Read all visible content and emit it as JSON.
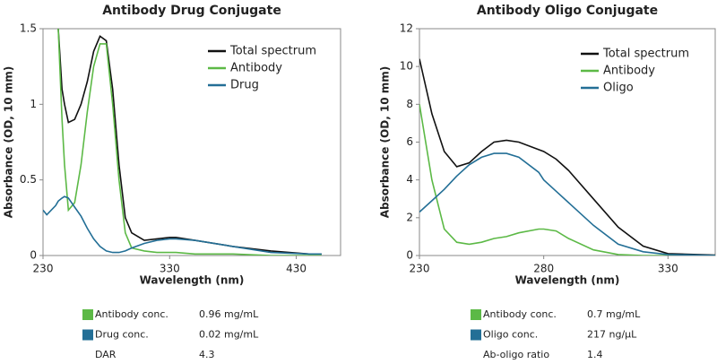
{
  "chart_data": [
    {
      "type": "line",
      "title": "Antibody Drug Conjugate",
      "x_label": "Wavelength (nm)",
      "y_label": "Absorbance (OD, 10 mm)",
      "x": [
        230,
        233,
        240,
        242,
        245,
        247,
        250,
        255,
        260,
        265,
        270,
        275,
        280,
        285,
        290,
        295,
        300,
        310,
        320,
        330,
        335,
        350,
        380,
        410,
        440,
        450
      ],
      "series": [
        {
          "name": "Total spectrum",
          "color": "#111111",
          "values": [
            null,
            null,
            null,
            1.5,
            1.1,
            1.0,
            0.88,
            0.9,
            1.0,
            1.15,
            1.35,
            1.45,
            1.42,
            1.1,
            0.6,
            0.25,
            0.15,
            0.1,
            0.11,
            0.12,
            0.12,
            0.1,
            0.06,
            0.03,
            0.01,
            0.01
          ]
        },
        {
          "name": "Antibody",
          "color": "#5cb946",
          "values": [
            null,
            null,
            null,
            1.5,
            0.9,
            0.6,
            0.3,
            0.35,
            0.6,
            0.95,
            1.25,
            1.4,
            1.4,
            1.0,
            0.5,
            0.15,
            0.05,
            0.03,
            0.02,
            0.02,
            0.02,
            0.01,
            0.01,
            0,
            0,
            0
          ]
        },
        {
          "name": "Drug",
          "color": "#236f96",
          "values": [
            0.3,
            0.27,
            0.33,
            0.36,
            0.38,
            0.39,
            0.38,
            0.32,
            0.26,
            0.18,
            0.11,
            0.06,
            0.03,
            0.02,
            0.02,
            0.03,
            0.05,
            0.08,
            0.1,
            0.11,
            0.11,
            0.1,
            0.06,
            0.02,
            0.01,
            0.01
          ]
        }
      ],
      "xlim": [
        230,
        465
      ],
      "ylim": [
        0,
        1.5
      ],
      "xticks": [
        230,
        330,
        430
      ],
      "yticks": [
        0,
        0.5,
        1,
        1.5
      ],
      "stats": [
        {
          "label": "Antibody conc.",
          "value": "0.96 mg/mL",
          "color": "#5cb946"
        },
        {
          "label": "Drug conc.",
          "value": "0.02 mg/mL",
          "color": "#236f96"
        },
        {
          "label": "DAR",
          "value": "4.3"
        }
      ]
    },
    {
      "type": "line",
      "title": "Antibody Oligo Conjugate",
      "x_label": "Wavelength (nm)",
      "y_label": "Absorbance (OD, 10 mm)",
      "x": [
        230,
        235,
        240,
        245,
        250,
        255,
        260,
        265,
        270,
        278,
        280,
        285,
        290,
        300,
        310,
        320,
        330,
        350
      ],
      "series": [
        {
          "name": "Total spectrum",
          "color": "#111111",
          "values": [
            10.4,
            7.5,
            5.5,
            4.7,
            4.9,
            5.5,
            6.0,
            6.1,
            6.0,
            5.6,
            5.5,
            5.1,
            4.5,
            3.0,
            1.5,
            0.5,
            0.1,
            0.02
          ]
        },
        {
          "name": "Antibody",
          "color": "#5cb946",
          "values": [
            8,
            4,
            1.4,
            0.7,
            0.6,
            0.7,
            0.9,
            1.0,
            1.2,
            1.4,
            1.4,
            1.3,
            0.9,
            0.3,
            0.05,
            0,
            0,
            0
          ]
        },
        {
          "name": "Oligo",
          "color": "#236f96",
          "values": [
            2.3,
            2.9,
            3.5,
            4.2,
            4.8,
            5.2,
            5.4,
            5.4,
            5.2,
            4.4,
            4.0,
            3.4,
            2.8,
            1.6,
            0.6,
            0.2,
            0.05,
            0
          ]
        }
      ],
      "xlim": [
        230,
        349
      ],
      "ylim": [
        0,
        12
      ],
      "xticks": [
        230,
        280,
        330
      ],
      "yticks": [
        0,
        2,
        4,
        6,
        8,
        10,
        12
      ],
      "stats": [
        {
          "label": "Antibody conc.",
          "value": "0.7 mg/mL",
          "color": "#5cb946"
        },
        {
          "label": "Oligo conc.",
          "value": "217 ng/µL",
          "color": "#236f96"
        },
        {
          "label": "Ab-oligo ratio",
          "value": "1.4"
        }
      ]
    }
  ]
}
